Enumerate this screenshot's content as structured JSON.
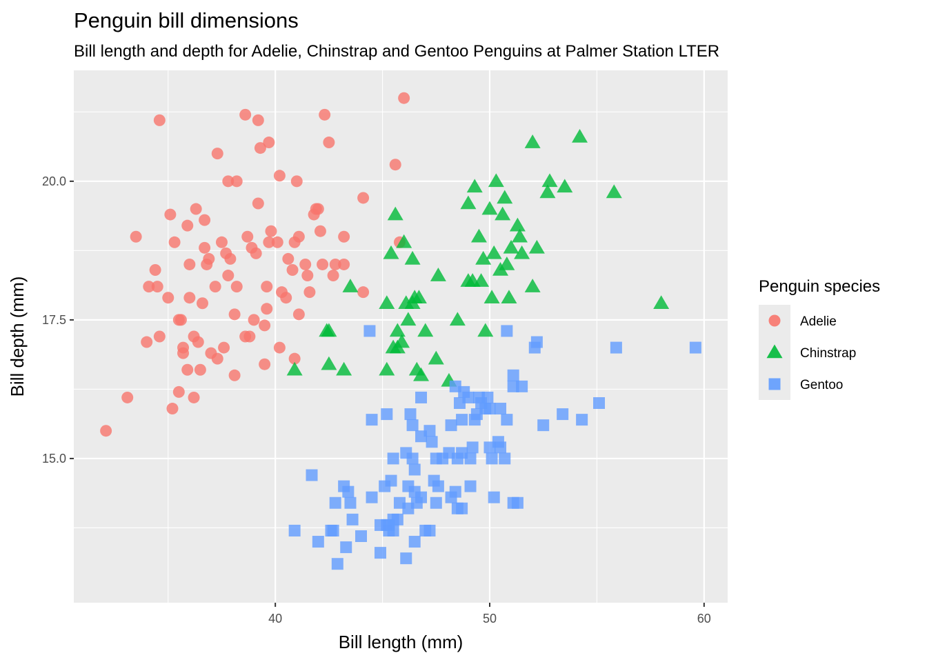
{
  "chart_data": {
    "type": "scatter",
    "title": "Penguin bill dimensions",
    "subtitle": "Bill length and depth for Adelie, Chinstrap and Gentoo Penguins at Palmer Station LTER",
    "xlabel": "Bill length (mm)",
    "ylabel": "Bill depth (mm)",
    "xlim": [
      30.6,
      61.1
    ],
    "ylim": [
      12.4,
      22.0
    ],
    "x_ticks": [
      40,
      50,
      60
    ],
    "x_tick_labels": [
      "40",
      "50",
      "60"
    ],
    "y_ticks": [
      15.0,
      17.5,
      20.0
    ],
    "y_tick_labels": [
      "15.0",
      "17.5",
      "20.0"
    ],
    "grid": true,
    "legend": {
      "title": "Penguin species",
      "position": "right"
    },
    "series": [
      {
        "name": "Adelie",
        "color": "#F8766D",
        "shape": "circle",
        "points": [
          [
            32.1,
            15.5
          ],
          [
            33.1,
            16.1
          ],
          [
            33.5,
            19.0
          ],
          [
            34.0,
            17.1
          ],
          [
            34.1,
            18.1
          ],
          [
            34.4,
            18.4
          ],
          [
            34.5,
            18.1
          ],
          [
            34.6,
            21.1
          ],
          [
            34.6,
            17.2
          ],
          [
            35.0,
            17.9
          ],
          [
            35.1,
            19.4
          ],
          [
            35.2,
            15.9
          ],
          [
            35.3,
            18.9
          ],
          [
            35.5,
            16.2
          ],
          [
            35.5,
            17.5
          ],
          [
            35.6,
            17.5
          ],
          [
            35.7,
            16.9
          ],
          [
            35.7,
            17.0
          ],
          [
            35.9,
            16.6
          ],
          [
            35.9,
            19.2
          ],
          [
            36.0,
            17.9
          ],
          [
            36.0,
            18.5
          ],
          [
            36.2,
            16.1
          ],
          [
            36.2,
            17.2
          ],
          [
            36.3,
            19.5
          ],
          [
            36.4,
            17.1
          ],
          [
            36.5,
            16.6
          ],
          [
            36.6,
            17.8
          ],
          [
            36.7,
            18.8
          ],
          [
            36.7,
            19.3
          ],
          [
            36.8,
            18.5
          ],
          [
            36.9,
            18.6
          ],
          [
            37.0,
            16.9
          ],
          [
            37.2,
            18.1
          ],
          [
            37.3,
            16.8
          ],
          [
            37.3,
            20.5
          ],
          [
            37.5,
            18.9
          ],
          [
            37.6,
            17.0
          ],
          [
            37.7,
            18.7
          ],
          [
            37.8,
            18.3
          ],
          [
            37.8,
            20.0
          ],
          [
            37.9,
            18.6
          ],
          [
            38.1,
            16.5
          ],
          [
            38.1,
            17.6
          ],
          [
            38.2,
            18.1
          ],
          [
            38.2,
            20.0
          ],
          [
            38.6,
            21.2
          ],
          [
            38.6,
            17.2
          ],
          [
            38.7,
            19.0
          ],
          [
            38.8,
            17.2
          ],
          [
            38.9,
            18.8
          ],
          [
            39.0,
            17.5
          ],
          [
            39.1,
            18.7
          ],
          [
            39.2,
            21.1
          ],
          [
            39.2,
            19.6
          ],
          [
            39.3,
            20.6
          ],
          [
            39.5,
            16.7
          ],
          [
            39.5,
            17.4
          ],
          [
            39.6,
            18.1
          ],
          [
            39.6,
            17.7
          ],
          [
            39.7,
            18.9
          ],
          [
            39.7,
            20.7
          ],
          [
            39.8,
            19.1
          ],
          [
            40.1,
            18.9
          ],
          [
            40.2,
            17.0
          ],
          [
            40.2,
            20.1
          ],
          [
            40.3,
            18.0
          ],
          [
            40.5,
            17.9
          ],
          [
            40.6,
            18.6
          ],
          [
            40.8,
            18.4
          ],
          [
            40.9,
            18.9
          ],
          [
            40.9,
            16.8
          ],
          [
            41.0,
            20.0
          ],
          [
            41.1,
            19.0
          ],
          [
            41.1,
            17.6
          ],
          [
            41.4,
            18.5
          ],
          [
            41.5,
            18.3
          ],
          [
            41.6,
            18.0
          ],
          [
            41.8,
            19.4
          ],
          [
            41.9,
            19.5
          ],
          [
            42.0,
            19.5
          ],
          [
            42.1,
            19.1
          ],
          [
            42.2,
            18.5
          ],
          [
            42.3,
            21.2
          ],
          [
            42.5,
            20.7
          ],
          [
            42.7,
            18.3
          ],
          [
            42.8,
            18.5
          ],
          [
            43.2,
            18.5
          ],
          [
            43.2,
            19.0
          ],
          [
            44.1,
            18.0
          ],
          [
            44.1,
            19.7
          ],
          [
            45.6,
            20.3
          ],
          [
            45.8,
            18.9
          ],
          [
            46.0,
            21.5
          ]
        ]
      },
      {
        "name": "Chinstrap",
        "color": "#00BA38",
        "shape": "triangle",
        "points": [
          [
            40.9,
            16.6
          ],
          [
            42.4,
            17.3
          ],
          [
            42.5,
            16.7
          ],
          [
            42.5,
            17.3
          ],
          [
            43.2,
            16.6
          ],
          [
            43.5,
            18.1
          ],
          [
            45.2,
            16.6
          ],
          [
            45.2,
            17.8
          ],
          [
            45.4,
            18.7
          ],
          [
            45.5,
            17.0
          ],
          [
            45.6,
            19.4
          ],
          [
            45.7,
            17.0
          ],
          [
            45.7,
            17.3
          ],
          [
            45.9,
            17.1
          ],
          [
            46.0,
            18.9
          ],
          [
            46.1,
            17.8
          ],
          [
            46.2,
            17.5
          ],
          [
            46.4,
            17.8
          ],
          [
            46.4,
            18.6
          ],
          [
            46.5,
            17.9
          ],
          [
            46.6,
            16.6
          ],
          [
            46.7,
            17.9
          ],
          [
            46.8,
            16.5
          ],
          [
            47.0,
            17.3
          ],
          [
            47.5,
            16.8
          ],
          [
            47.6,
            18.3
          ],
          [
            48.1,
            16.4
          ],
          [
            48.5,
            17.5
          ],
          [
            49.0,
            19.6
          ],
          [
            49.0,
            18.2
          ],
          [
            49.2,
            18.2
          ],
          [
            49.3,
            19.9
          ],
          [
            49.5,
            19.0
          ],
          [
            49.6,
            18.2
          ],
          [
            49.7,
            18.6
          ],
          [
            49.8,
            17.3
          ],
          [
            50.0,
            19.5
          ],
          [
            50.1,
            17.9
          ],
          [
            50.2,
            18.7
          ],
          [
            50.3,
            20.0
          ],
          [
            50.5,
            18.4
          ],
          [
            50.6,
            19.4
          ],
          [
            50.7,
            19.7
          ],
          [
            50.8,
            18.5
          ],
          [
            50.9,
            17.9
          ],
          [
            51.0,
            18.8
          ],
          [
            51.3,
            19.2
          ],
          [
            51.4,
            19.0
          ],
          [
            51.5,
            18.7
          ],
          [
            52.0,
            18.1
          ],
          [
            52.0,
            20.7
          ],
          [
            52.2,
            18.8
          ],
          [
            52.7,
            19.8
          ],
          [
            52.8,
            20.0
          ],
          [
            53.5,
            19.9
          ],
          [
            54.2,
            20.8
          ],
          [
            55.8,
            19.8
          ],
          [
            58.0,
            17.8
          ]
        ]
      },
      {
        "name": "Gentoo",
        "color": "#619CFF",
        "shape": "square",
        "points": [
          [
            40.9,
            13.7
          ],
          [
            41.7,
            14.7
          ],
          [
            42.0,
            13.5
          ],
          [
            42.6,
            13.7
          ],
          [
            42.7,
            13.7
          ],
          [
            42.8,
            14.2
          ],
          [
            42.9,
            13.1
          ],
          [
            43.2,
            14.5
          ],
          [
            43.3,
            13.4
          ],
          [
            43.4,
            14.4
          ],
          [
            43.5,
            14.2
          ],
          [
            43.6,
            13.9
          ],
          [
            44.0,
            13.6
          ],
          [
            44.4,
            17.3
          ],
          [
            44.5,
            14.3
          ],
          [
            44.5,
            15.7
          ],
          [
            44.9,
            13.3
          ],
          [
            44.9,
            13.8
          ],
          [
            45.1,
            14.5
          ],
          [
            45.2,
            13.8
          ],
          [
            45.2,
            15.8
          ],
          [
            45.3,
            13.7
          ],
          [
            45.3,
            13.8
          ],
          [
            45.4,
            14.6
          ],
          [
            45.5,
            13.7
          ],
          [
            45.5,
            13.9
          ],
          [
            45.5,
            15.0
          ],
          [
            45.7,
            13.9
          ],
          [
            45.8,
            14.2
          ],
          [
            46.1,
            13.2
          ],
          [
            46.1,
            15.1
          ],
          [
            46.2,
            14.1
          ],
          [
            46.2,
            14.5
          ],
          [
            46.3,
            15.8
          ],
          [
            46.4,
            15.6
          ],
          [
            46.4,
            15.0
          ],
          [
            46.5,
            13.5
          ],
          [
            46.5,
            14.4
          ],
          [
            46.5,
            14.8
          ],
          [
            46.6,
            14.2
          ],
          [
            46.8,
            14.3
          ],
          [
            46.8,
            15.4
          ],
          [
            46.8,
            16.1
          ],
          [
            47.0,
            13.7
          ],
          [
            47.2,
            13.7
          ],
          [
            47.2,
            15.5
          ],
          [
            47.3,
            15.3
          ],
          [
            47.4,
            14.6
          ],
          [
            47.5,
            14.2
          ],
          [
            47.5,
            15.0
          ],
          [
            47.6,
            14.5
          ],
          [
            47.8,
            15.0
          ],
          [
            48.1,
            15.1
          ],
          [
            48.2,
            14.3
          ],
          [
            48.2,
            15.6
          ],
          [
            48.4,
            14.4
          ],
          [
            48.4,
            16.3
          ],
          [
            48.5,
            14.1
          ],
          [
            48.5,
            15.0
          ],
          [
            48.6,
            16.0
          ],
          [
            48.7,
            14.1
          ],
          [
            48.7,
            15.1
          ],
          [
            48.7,
            15.7
          ],
          [
            48.8,
            16.2
          ],
          [
            49.0,
            16.1
          ],
          [
            49.1,
            14.5
          ],
          [
            49.1,
            15.0
          ],
          [
            49.2,
            15.2
          ],
          [
            49.3,
            15.7
          ],
          [
            49.4,
            15.8
          ],
          [
            49.5,
            16.1
          ],
          [
            49.6,
            16.0
          ],
          [
            49.8,
            15.9
          ],
          [
            49.9,
            16.1
          ],
          [
            50.0,
            15.2
          ],
          [
            50.0,
            15.9
          ],
          [
            50.1,
            15.0
          ],
          [
            50.2,
            14.3
          ],
          [
            50.4,
            15.3
          ],
          [
            50.5,
            15.2
          ],
          [
            50.5,
            15.9
          ],
          [
            50.7,
            15.0
          ],
          [
            50.8,
            15.7
          ],
          [
            50.8,
            17.3
          ],
          [
            51.1,
            14.2
          ],
          [
            51.1,
            16.3
          ],
          [
            51.1,
            16.5
          ],
          [
            51.3,
            14.2
          ],
          [
            51.5,
            16.3
          ],
          [
            52.1,
            17.0
          ],
          [
            52.2,
            17.1
          ],
          [
            52.5,
            15.6
          ],
          [
            53.4,
            15.8
          ],
          [
            54.3,
            15.7
          ],
          [
            55.1,
            16.0
          ],
          [
            55.9,
            17.0
          ],
          [
            59.6,
            17.0
          ]
        ]
      }
    ]
  }
}
